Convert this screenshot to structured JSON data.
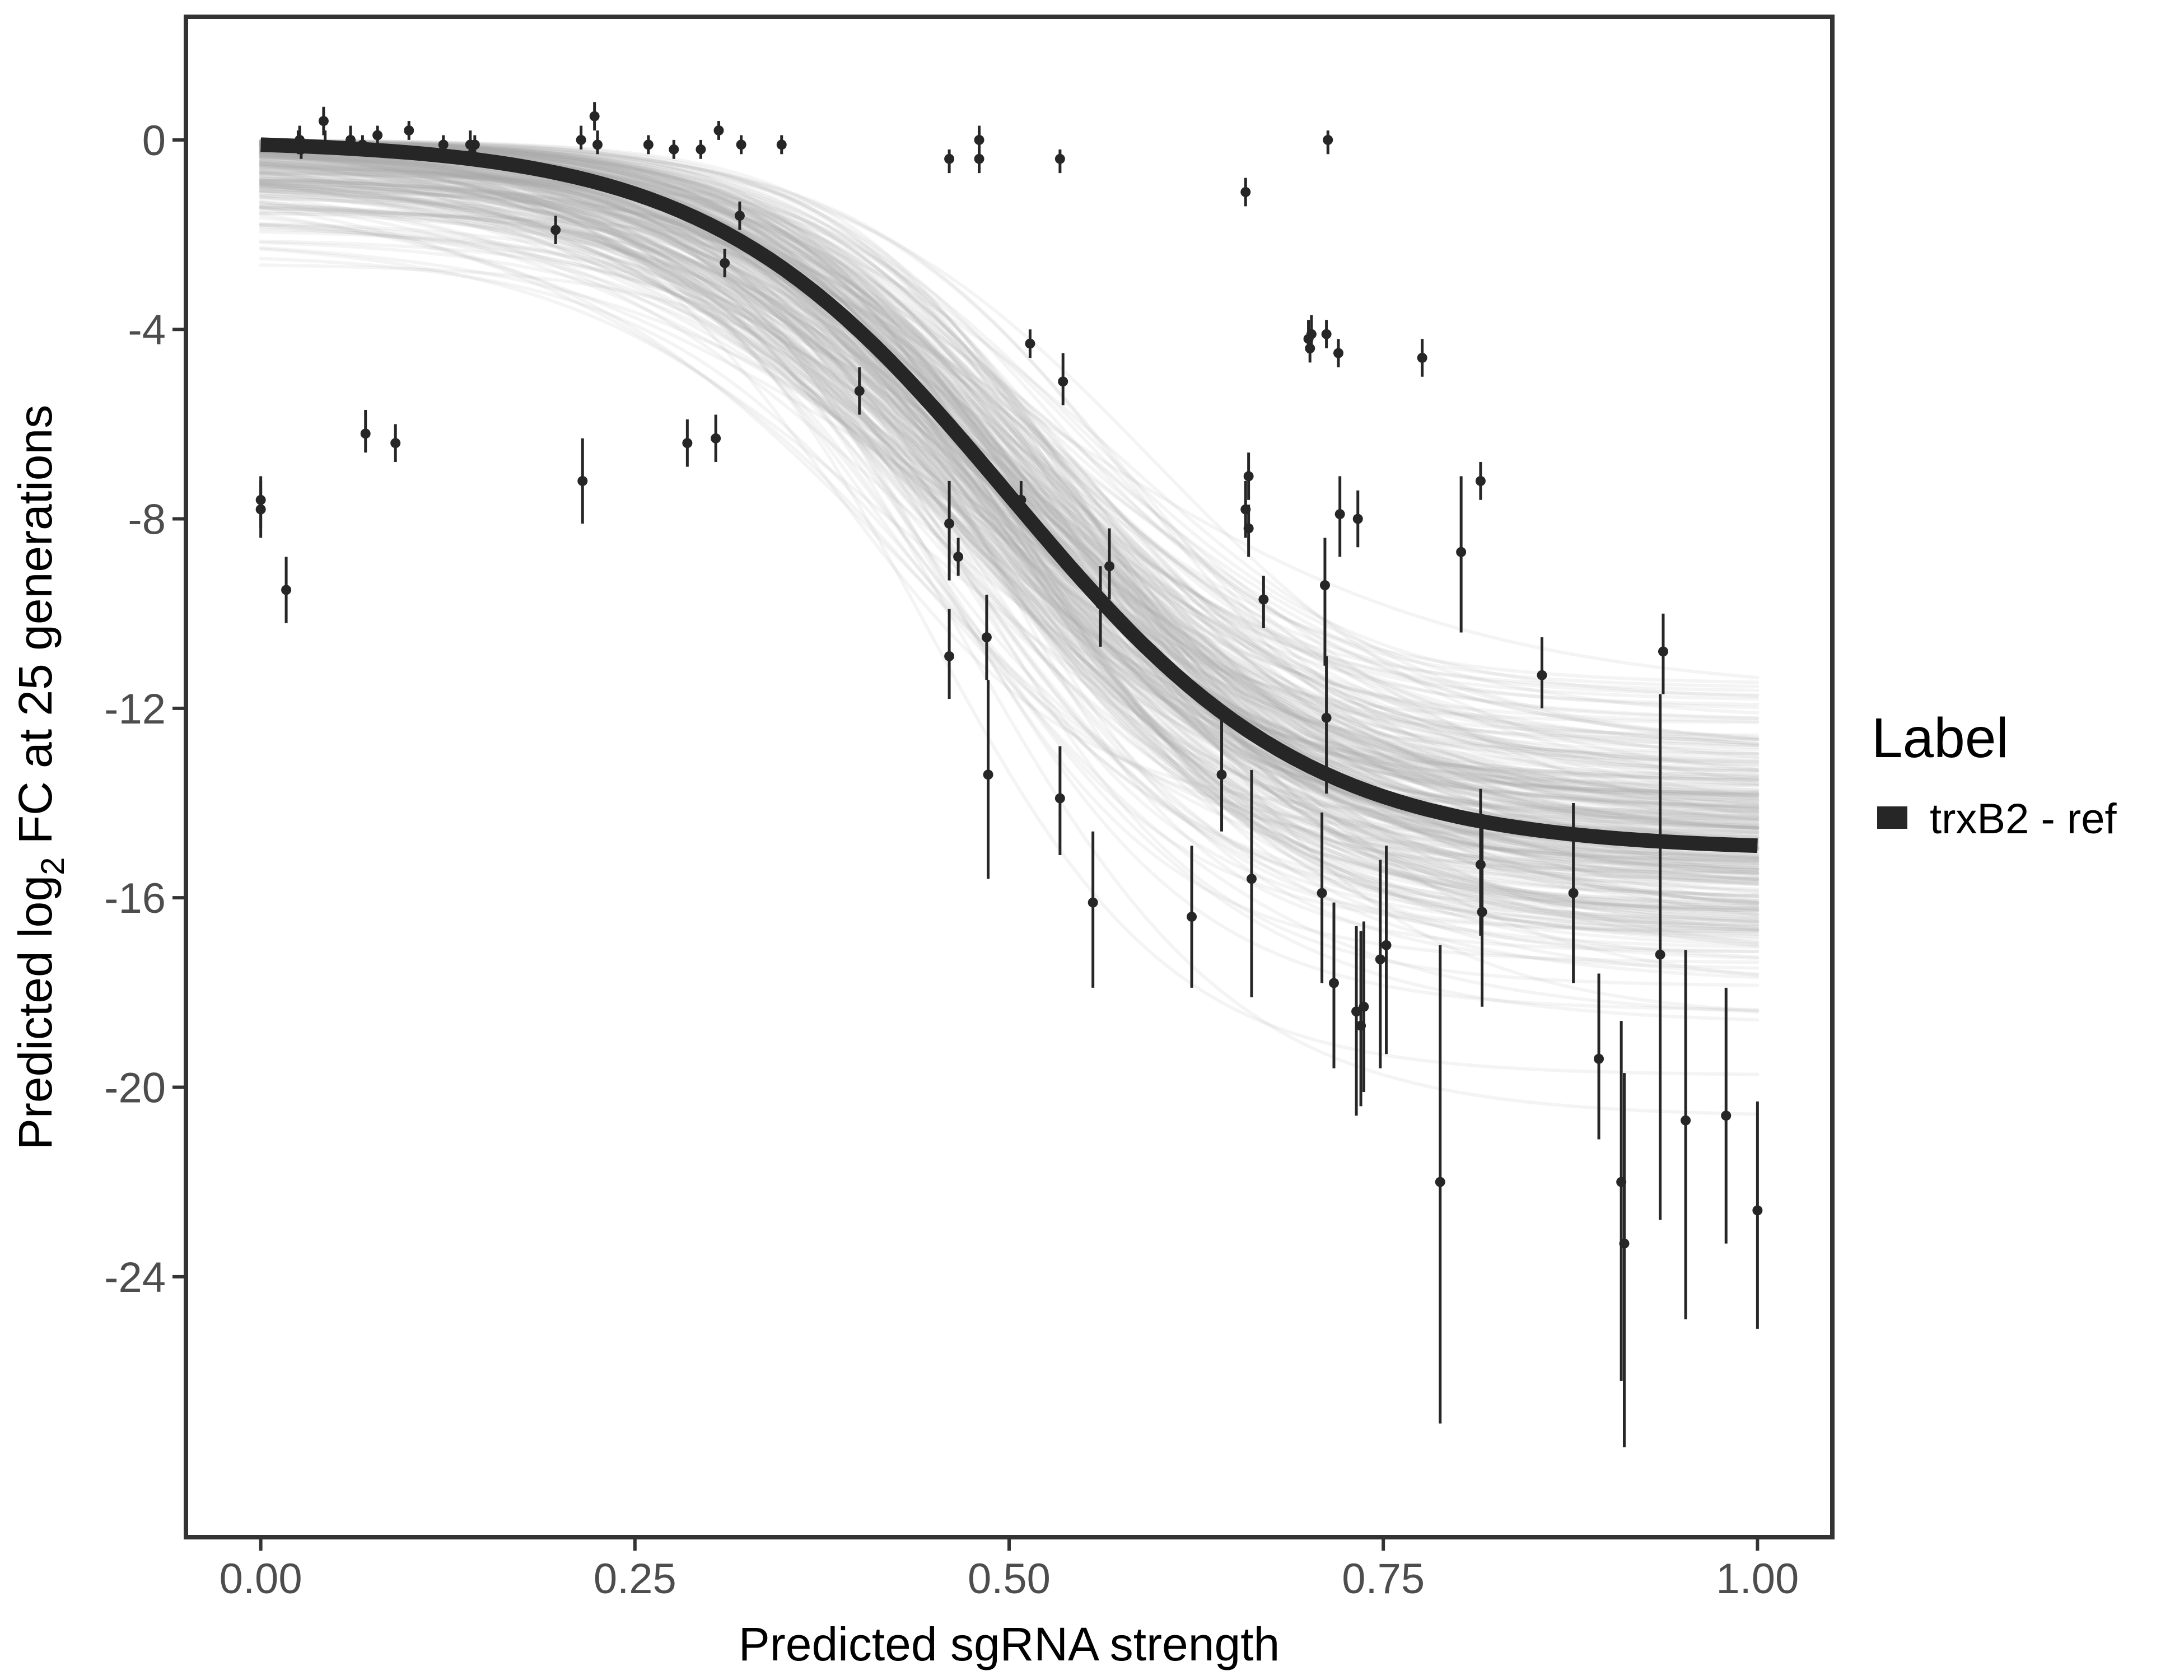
{
  "chart_data": {
    "type": "scatter",
    "title": "",
    "xlabel": "Predicted sgRNA strength",
    "ylabel_parts": [
      "Predicted  log",
      "2",
      " FC at 25 generations"
    ],
    "xlim": [
      -0.05,
      1.05
    ],
    "ylim": [
      -29.5,
      2.6
    ],
    "x_ticks": [
      0,
      0.25,
      0.5,
      0.75,
      1
    ],
    "x_tick_labels": [
      "0.00",
      "0.25",
      "0.50",
      "0.75",
      "1.00"
    ],
    "y_ticks": [
      0,
      -4,
      -8,
      -12,
      -16,
      -20,
      -24
    ],
    "y_tick_labels": [
      "0",
      "-4",
      "-8",
      "-12",
      "-16",
      "-20",
      "-24"
    ],
    "grid": false,
    "legend": {
      "title": "Label",
      "position": "right",
      "entries": [
        {
          "label": "trxB2 - ref",
          "color": "#262626"
        }
      ]
    },
    "fit_curve": {
      "name": "trxB2 - ref",
      "model": "4-parameter logistic",
      "upper": 0.0,
      "lower": -15.0,
      "midpoint": 0.5,
      "slope": 10,
      "color": "#262626"
    },
    "posterior_draws": {
      "count": 300,
      "color": "#a9a9a9",
      "description": "posterior draws of the fitted curve"
    },
    "points": [
      {
        "x": 0.0,
        "y": -7.8,
        "lo": -8.4,
        "hi": -7.1
      },
      {
        "x": 0.0,
        "y": -7.6,
        "lo": -8.2,
        "hi": -7.2
      },
      {
        "x": 0.017,
        "y": -9.5,
        "lo": -10.2,
        "hi": -8.8
      },
      {
        "x": 0.025,
        "y": -0.1,
        "lo": -0.3,
        "hi": 0.2
      },
      {
        "x": 0.026,
        "y": 0.0,
        "lo": -0.2,
        "hi": 0.3
      },
      {
        "x": 0.027,
        "y": -0.2,
        "lo": -0.4,
        "hi": 0.0
      },
      {
        "x": 0.042,
        "y": 0.4,
        "lo": 0.1,
        "hi": 0.7
      },
      {
        "x": 0.043,
        "y": -0.1,
        "lo": -0.3,
        "hi": 0.2
      },
      {
        "x": 0.06,
        "y": 0.0,
        "lo": -0.2,
        "hi": 0.3
      },
      {
        "x": 0.068,
        "y": -0.1,
        "lo": -0.3,
        "hi": 0.1
      },
      {
        "x": 0.07,
        "y": -6.2,
        "lo": -6.6,
        "hi": -5.7
      },
      {
        "x": 0.078,
        "y": 0.1,
        "lo": -0.1,
        "hi": 0.3
      },
      {
        "x": 0.09,
        "y": -6.4,
        "lo": -6.8,
        "hi": -6.0
      },
      {
        "x": 0.099,
        "y": 0.2,
        "lo": 0.0,
        "hi": 0.4
      },
      {
        "x": 0.122,
        "y": -0.1,
        "lo": -0.3,
        "hi": 0.1
      },
      {
        "x": 0.14,
        "y": -0.1,
        "lo": -0.3,
        "hi": 0.2
      },
      {
        "x": 0.141,
        "y": -0.3,
        "lo": -0.5,
        "hi": -0.1
      },
      {
        "x": 0.143,
        "y": -0.1,
        "lo": -0.3,
        "hi": 0.1
      },
      {
        "x": 0.197,
        "y": -1.9,
        "lo": -2.2,
        "hi": -1.6
      },
      {
        "x": 0.214,
        "y": 0.0,
        "lo": -0.2,
        "hi": 0.3
      },
      {
        "x": 0.215,
        "y": -7.2,
        "lo": -8.1,
        "hi": -6.3
      },
      {
        "x": 0.223,
        "y": 0.5,
        "lo": 0.2,
        "hi": 0.8
      },
      {
        "x": 0.225,
        "y": -0.1,
        "lo": -0.3,
        "hi": 0.2
      },
      {
        "x": 0.259,
        "y": -0.1,
        "lo": -0.3,
        "hi": 0.1
      },
      {
        "x": 0.276,
        "y": -0.2,
        "lo": -0.4,
        "hi": 0.0
      },
      {
        "x": 0.285,
        "y": -6.4,
        "lo": -6.9,
        "hi": -5.9
      },
      {
        "x": 0.294,
        "y": -0.2,
        "lo": -0.4,
        "hi": 0.0
      },
      {
        "x": 0.304,
        "y": -6.3,
        "lo": -6.8,
        "hi": -5.8
      },
      {
        "x": 0.306,
        "y": 0.2,
        "lo": 0.0,
        "hi": 0.4
      },
      {
        "x": 0.31,
        "y": -2.6,
        "lo": -2.9,
        "hi": -2.3
      },
      {
        "x": 0.32,
        "y": -1.6,
        "lo": -1.9,
        "hi": -1.3
      },
      {
        "x": 0.321,
        "y": -0.1,
        "lo": -0.3,
        "hi": 0.1
      },
      {
        "x": 0.348,
        "y": -0.1,
        "lo": -0.3,
        "hi": 0.1
      },
      {
        "x": 0.4,
        "y": -5.3,
        "lo": -5.8,
        "hi": -4.8
      },
      {
        "x": 0.46,
        "y": -0.4,
        "lo": -0.7,
        "hi": -0.2
      },
      {
        "x": 0.46,
        "y": -8.1,
        "lo": -9.3,
        "hi": -7.2
      },
      {
        "x": 0.46,
        "y": -10.9,
        "lo": -11.8,
        "hi": -9.9
      },
      {
        "x": 0.466,
        "y": -8.8,
        "lo": -9.2,
        "hi": -8.4
      },
      {
        "x": 0.48,
        "y": 0.0,
        "lo": -0.3,
        "hi": 0.3
      },
      {
        "x": 0.48,
        "y": -0.4,
        "lo": -0.7,
        "hi": -0.1
      },
      {
        "x": 0.485,
        "y": -10.5,
        "lo": -11.4,
        "hi": -9.6
      },
      {
        "x": 0.486,
        "y": -13.4,
        "lo": -15.6,
        "hi": -11.4
      },
      {
        "x": 0.508,
        "y": -7.6,
        "lo": -8.0,
        "hi": -7.2
      },
      {
        "x": 0.514,
        "y": -4.3,
        "lo": -4.6,
        "hi": -4.0
      },
      {
        "x": 0.534,
        "y": -0.4,
        "lo": -0.7,
        "hi": -0.2
      },
      {
        "x": 0.534,
        "y": -13.9,
        "lo": -15.1,
        "hi": -12.8
      },
      {
        "x": 0.536,
        "y": -5.1,
        "lo": -5.6,
        "hi": -4.5
      },
      {
        "x": 0.556,
        "y": -16.1,
        "lo": -17.9,
        "hi": -14.6
      },
      {
        "x": 0.561,
        "y": -9.8,
        "lo": -10.7,
        "hi": -9.0
      },
      {
        "x": 0.567,
        "y": -9.0,
        "lo": -9.7,
        "hi": -8.2
      },
      {
        "x": 0.622,
        "y": -16.4,
        "lo": -17.9,
        "hi": -14.9
      },
      {
        "x": 0.642,
        "y": -13.4,
        "lo": -14.6,
        "hi": -12.0
      },
      {
        "x": 0.658,
        "y": -1.1,
        "lo": -1.4,
        "hi": -0.8
      },
      {
        "x": 0.658,
        "y": -7.8,
        "lo": -8.4,
        "hi": -7.2
      },
      {
        "x": 0.66,
        "y": -7.1,
        "lo": -7.6,
        "hi": -6.6
      },
      {
        "x": 0.66,
        "y": -8.2,
        "lo": -8.8,
        "hi": -7.7
      },
      {
        "x": 0.662,
        "y": -15.6,
        "lo": -18.1,
        "hi": -13.3
      },
      {
        "x": 0.67,
        "y": -9.7,
        "lo": -10.3,
        "hi": -9.2
      },
      {
        "x": 0.7,
        "y": -4.2,
        "lo": -4.5,
        "hi": -3.8
      },
      {
        "x": 0.701,
        "y": -4.4,
        "lo": -4.7,
        "hi": -4.1
      },
      {
        "x": 0.702,
        "y": -4.1,
        "lo": -4.4,
        "hi": -3.7
      },
      {
        "x": 0.709,
        "y": -15.9,
        "lo": -17.8,
        "hi": -14.2
      },
      {
        "x": 0.711,
        "y": -9.4,
        "lo": -11.1,
        "hi": -8.4
      },
      {
        "x": 0.712,
        "y": -4.1,
        "lo": -4.4,
        "hi": -3.8
      },
      {
        "x": 0.712,
        "y": -12.2,
        "lo": -13.8,
        "hi": -10.9
      },
      {
        "x": 0.713,
        "y": 0.0,
        "lo": -0.3,
        "hi": 0.2
      },
      {
        "x": 0.717,
        "y": -17.8,
        "lo": -19.6,
        "hi": -16.1
      },
      {
        "x": 0.72,
        "y": -4.5,
        "lo": -4.8,
        "hi": -4.2
      },
      {
        "x": 0.721,
        "y": -7.9,
        "lo": -8.8,
        "hi": -7.1
      },
      {
        "x": 0.732,
        "y": -18.4,
        "lo": -20.6,
        "hi": -16.6
      },
      {
        "x": 0.733,
        "y": -8.0,
        "lo": -8.6,
        "hi": -7.4
      },
      {
        "x": 0.735,
        "y": -18.7,
        "lo": -20.4,
        "hi": -16.7
      },
      {
        "x": 0.737,
        "y": -18.3,
        "lo": -20.1,
        "hi": -16.5
      },
      {
        "x": 0.748,
        "y": -17.3,
        "lo": -19.6,
        "hi": -15.2
      },
      {
        "x": 0.752,
        "y": -17.0,
        "lo": -19.3,
        "hi": -14.9
      },
      {
        "x": 0.776,
        "y": -4.6,
        "lo": -5.0,
        "hi": -4.2
      },
      {
        "x": 0.788,
        "y": -22.0,
        "lo": -27.1,
        "hi": -17.0
      },
      {
        "x": 0.802,
        "y": -8.7,
        "lo": -10.4,
        "hi": -7.1
      },
      {
        "x": 0.815,
        "y": -7.2,
        "lo": -7.6,
        "hi": -6.8
      },
      {
        "x": 0.815,
        "y": -15.3,
        "lo": -16.8,
        "hi": -13.7
      },
      {
        "x": 0.816,
        "y": -16.3,
        "lo": -18.3,
        "hi": -14.5
      },
      {
        "x": 0.856,
        "y": -11.3,
        "lo": -12.0,
        "hi": -10.5
      },
      {
        "x": 0.877,
        "y": -15.9,
        "lo": -17.8,
        "hi": -14.0
      },
      {
        "x": 0.894,
        "y": -19.4,
        "lo": -21.1,
        "hi": -17.6
      },
      {
        "x": 0.909,
        "y": -22.0,
        "lo": -26.2,
        "hi": -18.6
      },
      {
        "x": 0.911,
        "y": -23.3,
        "lo": -27.6,
        "hi": -19.7
      },
      {
        "x": 0.935,
        "y": -17.2,
        "lo": -22.8,
        "hi": -11.7
      },
      {
        "x": 0.937,
        "y": -10.8,
        "lo": -11.7,
        "hi": -10.0
      },
      {
        "x": 0.952,
        "y": -20.7,
        "lo": -24.9,
        "hi": -17.1
      },
      {
        "x": 0.979,
        "y": -20.6,
        "lo": -23.3,
        "hi": -17.9
      },
      {
        "x": 1.0,
        "y": -22.6,
        "lo": -25.1,
        "hi": -20.3
      }
    ]
  }
}
